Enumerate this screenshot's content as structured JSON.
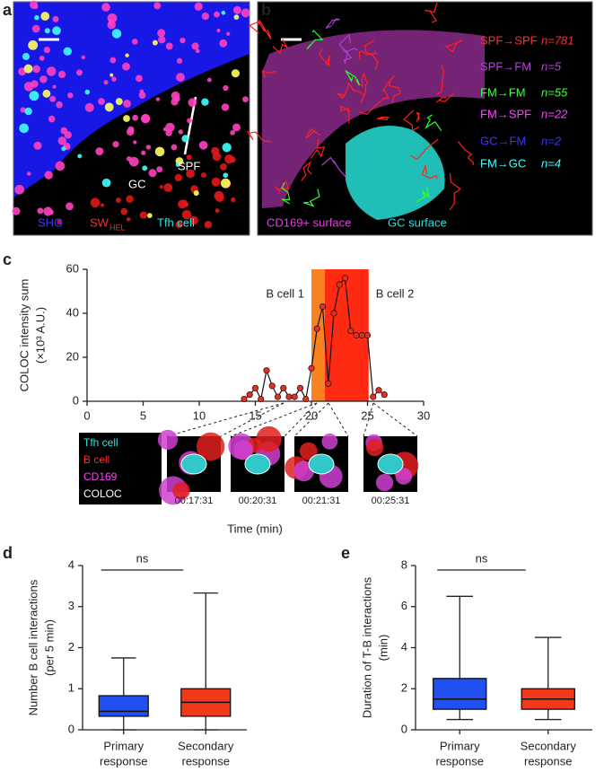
{
  "panel_a": {
    "label": "a",
    "annotations": [
      "SPF",
      "GC"
    ],
    "legend": [
      {
        "text": "SHG",
        "color": "#3a3aff"
      },
      {
        "text": "SW",
        "subscript": "HEL",
        "color": "#ff2a2a"
      },
      {
        "text": "Tfh cell",
        "color": "#33e0e0"
      }
    ]
  },
  "panel_b": {
    "label": "b",
    "tracks": [
      {
        "route": "SPF→SPF",
        "count": "n=781",
        "color": "#ff3030"
      },
      {
        "route": "SPF→FM",
        "count": "n=5",
        "color": "#b048d8"
      },
      {
        "route": "FM→FM",
        "count": "n=55",
        "color": "#44ff44"
      },
      {
        "route": "FM→SPF",
        "count": "n=22",
        "color": "#ff44ff"
      },
      {
        "route": "GC→FM",
        "count": "n=2",
        "color": "#3838ff"
      },
      {
        "route": "FM→GC",
        "count": "n=4",
        "color": "#44ffff"
      }
    ],
    "legend": [
      {
        "text": "CD169+ surface",
        "color": "#e040e0"
      },
      {
        "text": "GC surface",
        "color": "#33dddd"
      }
    ]
  },
  "panel_c_inset": {
    "legend": [
      {
        "text": "Tfh cell",
        "color": "#33e0e0"
      },
      {
        "text": "B cell",
        "color": "#ff2a2a"
      },
      {
        "text": "CD169",
        "color": "#ff40ff"
      },
      {
        "text": "COLOC",
        "color": "#ffffff"
      }
    ],
    "frames": [
      "00:17:31",
      "00:20:31",
      "00:21:31",
      "00:25:31"
    ]
  },
  "chart_data": [
    {
      "type": "line",
      "label": "c",
      "ylabel": [
        "COLOC intensity sum",
        "(×10³ A.U.)"
      ],
      "xlabel": "Time (min)",
      "x": [
        14,
        14.5,
        15,
        15.5,
        16,
        16.5,
        17,
        17.5,
        18,
        18.5,
        19,
        19.5,
        20,
        20.5,
        21,
        21.5,
        22,
        22.5,
        23,
        23.5,
        24,
        24.5,
        25,
        25.5,
        26,
        26.5
      ],
      "values": [
        1,
        3,
        6,
        1,
        14,
        7,
        2,
        6,
        2,
        2,
        6,
        1,
        15,
        33,
        43,
        8,
        40,
        53,
        56,
        32,
        30,
        30,
        30,
        2,
        5,
        3
      ],
      "line_color": "#111111",
      "marker_color": "#d9342a",
      "bands": [
        {
          "text": "B cell 1",
          "range": [
            20,
            21.2
          ],
          "color": "#f7821f"
        },
        {
          "text": "B cell 2",
          "range": [
            21.2,
            25.1
          ],
          "color": "#ff2a12"
        }
      ],
      "xlim": [
        0,
        30
      ],
      "xticks": [
        0,
        5,
        10,
        15,
        20,
        25,
        30
      ],
      "ylim": [
        0,
        60
      ],
      "yticks": [
        0,
        20,
        40,
        60
      ]
    },
    {
      "type": "box",
      "label": "d",
      "ylabel": [
        "Number B cell interactions",
        "(per 5 min)"
      ],
      "annotation": "ns",
      "categories": [
        [
          "Primary",
          "response"
        ],
        [
          "Secondary",
          "response"
        ]
      ],
      "boxes": [
        {
          "min": 0,
          "q1": 0.33,
          "median": 0.45,
          "q3": 0.83,
          "max": 1.75,
          "color": "#2050f0"
        },
        {
          "min": 0,
          "q1": 0.33,
          "median": 0.67,
          "q3": 1.0,
          "max": 3.33,
          "color": "#f03a1a"
        }
      ],
      "ylim": [
        0,
        4
      ],
      "yticks": [
        0,
        1,
        2,
        3,
        4
      ]
    },
    {
      "type": "box",
      "label": "e",
      "ylabel": [
        "Duration of T-B interactions",
        "(min)"
      ],
      "annotation": "ns",
      "categories": [
        [
          "Primary",
          "response"
        ],
        [
          "Secondary",
          "response"
        ]
      ],
      "boxes": [
        {
          "min": 0.5,
          "q1": 1.0,
          "median": 1.5,
          "q3": 2.5,
          "max": 6.5,
          "color": "#2050f0"
        },
        {
          "min": 0.5,
          "q1": 1.0,
          "median": 1.5,
          "q3": 2.0,
          "max": 4.5,
          "color": "#f03a1a"
        }
      ],
      "ylim": [
        0,
        8
      ],
      "yticks": [
        0,
        2,
        4,
        6,
        8
      ]
    }
  ]
}
